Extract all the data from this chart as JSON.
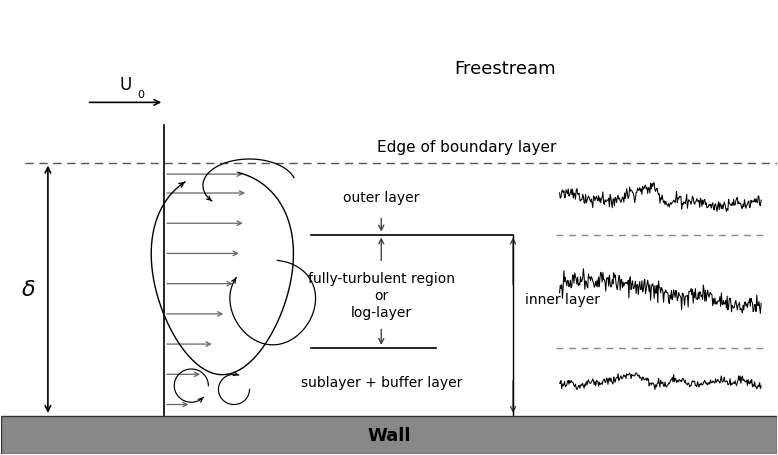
{
  "fig_width": 7.78,
  "fig_height": 4.56,
  "bg_color": "#ffffff",
  "title_freestream": "Freestream",
  "title_edge": "Edge of boundary layer",
  "title_wall": "Wall",
  "label_outer": "outer layer",
  "label_log": "fully-turbulent region\nor\nlog-layer",
  "label_inner": "inner layer",
  "label_sublayer": "sublayer + buffer layer",
  "label_delta": "δ",
  "label_U0": "U",
  "label_U0_sub": "0"
}
